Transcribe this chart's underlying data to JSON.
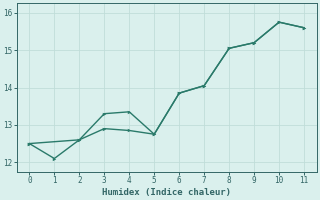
{
  "xlabel": "Humidex (Indice chaleur)",
  "line1_x": [
    0,
    1,
    2,
    3,
    4,
    5,
    6,
    7,
    8,
    9,
    10,
    11
  ],
  "line1_y": [
    12.5,
    12.1,
    12.6,
    12.9,
    12.85,
    12.75,
    13.85,
    14.05,
    15.05,
    15.2,
    15.75,
    15.6
  ],
  "line2_x": [
    0,
    2,
    3,
    4,
    5,
    6,
    7,
    8,
    9,
    10,
    11
  ],
  "line2_y": [
    12.5,
    12.6,
    13.3,
    13.35,
    12.75,
    13.85,
    14.05,
    15.05,
    15.2,
    15.75,
    15.6
  ],
  "line_color": "#2a7a6a",
  "bg_color": "#daf0ed",
  "grid_color": "#c0ddd9",
  "axis_color": "#336666",
  "tick_color": "#336666",
  "ylim": [
    11.75,
    16.25
  ],
  "xlim": [
    -0.5,
    11.5
  ],
  "yticks": [
    12,
    13,
    14,
    15,
    16
  ],
  "xticks": [
    0,
    1,
    2,
    3,
    4,
    5,
    6,
    7,
    8,
    9,
    10,
    11
  ],
  "marker_size": 2.5,
  "linewidth": 1.0
}
